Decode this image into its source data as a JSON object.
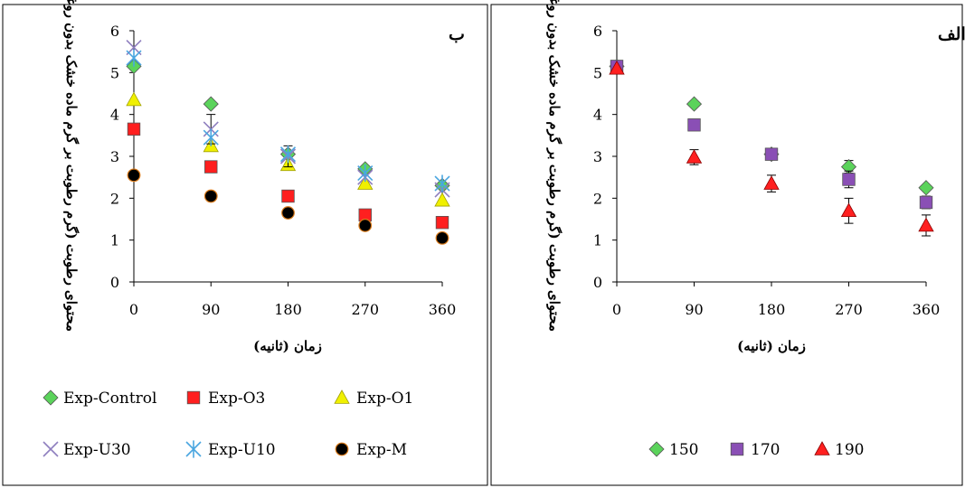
{
  "chart_data": [
    {
      "type": "scatter",
      "title": "ب",
      "xlabel": "زمان (ثانیه)",
      "ylabel": "محتوای رطوبت (گرم رطوبت بر گرم ماده خشک بدون روغن)",
      "x": [
        0,
        90,
        180,
        270,
        360
      ],
      "xlim": [
        0,
        360
      ],
      "ylim": [
        0,
        6
      ],
      "xticks": [
        "0",
        "90",
        "180",
        "270",
        "360"
      ],
      "yticks": [
        "0",
        "1",
        "2",
        "3",
        "4",
        "5",
        "6"
      ],
      "grid": false,
      "legend_position": "bottom",
      "series": [
        {
          "name": "Exp-Control",
          "marker": "diamond",
          "color": "#5bd35b",
          "values": [
            5.15,
            4.25,
            3.05,
            2.7,
            2.3
          ],
          "error": [
            0,
            0,
            0,
            0,
            0
          ]
        },
        {
          "name": "Exp-O3",
          "marker": "square",
          "color": "#ff1f1f",
          "values": [
            3.65,
            2.75,
            2.05,
            1.6,
            1.42
          ],
          "error": [
            0,
            0,
            0,
            0,
            0
          ]
        },
        {
          "name": "Exp-O1",
          "marker": "triangle",
          "color": "#f0f000",
          "values": [
            4.35,
            3.25,
            2.8,
            2.35,
            1.95
          ],
          "error": [
            0,
            0,
            0,
            0,
            0
          ]
        },
        {
          "name": "Exp-U30",
          "marker": "x",
          "color": "#8f7fbf",
          "values": [
            5.6,
            3.65,
            3.0,
            2.5,
            2.2
          ],
          "error": [
            0,
            0.35,
            0.25,
            0,
            0
          ]
        },
        {
          "name": "Exp-U10",
          "marker": "asterisk",
          "color": "#4aa6e0",
          "values": [
            5.35,
            3.45,
            3.05,
            2.6,
            2.35
          ],
          "error": [
            0,
            0,
            0,
            0,
            0
          ]
        },
        {
          "name": "Exp-M",
          "marker": "circle",
          "color": "#000000",
          "values": [
            2.55,
            2.05,
            1.65,
            1.35,
            1.05
          ],
          "error": [
            0,
            0,
            0,
            0,
            0
          ]
        }
      ]
    },
    {
      "type": "scatter",
      "title": "الف",
      "xlabel": "زمان (ثانیه)",
      "ylabel": "محتوای رطوبت (گرم رطوبت بر گرم ماده خشک بدون روغن)",
      "x": [
        0,
        90,
        180,
        270,
        360
      ],
      "xlim": [
        0,
        360
      ],
      "ylim": [
        0,
        6
      ],
      "xticks": [
        "0",
        "90",
        "180",
        "270",
        "360"
      ],
      "yticks": [
        "0",
        "1",
        "2",
        "3",
        "4",
        "5",
        "6"
      ],
      "grid": false,
      "legend_position": "bottom",
      "series": [
        {
          "name": "150",
          "marker": "diamond",
          "color": "#5bd35b",
          "values": [
            5.15,
            4.25,
            3.05,
            2.75,
            2.25
          ],
          "error": [
            0,
            0,
            0,
            0.15,
            0
          ]
        },
        {
          "name": "170",
          "marker": "square",
          "color": "#8a4fb5",
          "values": [
            5.15,
            3.75,
            3.05,
            2.45,
            1.9
          ],
          "error": [
            0,
            0,
            0,
            0.2,
            0.15
          ]
        },
        {
          "name": "190",
          "marker": "triangle",
          "color": "#ff2020",
          "values": [
            5.1,
            2.98,
            2.35,
            1.7,
            1.35
          ],
          "error": [
            0,
            0.18,
            0.2,
            0.3,
            0.25
          ]
        }
      ]
    }
  ]
}
